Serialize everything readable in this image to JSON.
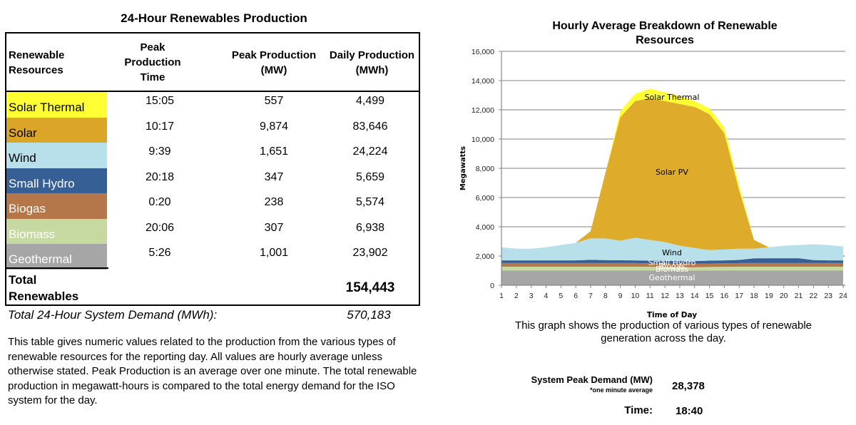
{
  "table": {
    "title": "24-Hour Renewables Production",
    "headers": [
      "Renewable Resources",
      "Peak Production Time",
      "Peak Production (MW)",
      "Daily Production (MWh)"
    ],
    "header_lines": {
      "h0": [
        "Renewable",
        "Resources"
      ],
      "h1": [
        "Peak",
        "Production",
        "Time"
      ],
      "h2": [
        "Peak Production",
        "(MW)"
      ],
      "h3": [
        "Daily Production",
        "(MWh)"
      ]
    },
    "rows": [
      {
        "resource": "Solar Thermal",
        "peak_time": "15:05",
        "peak_mw": "557",
        "daily_mwh": "4,499",
        "color": "#ffff33",
        "text_color": "#000000"
      },
      {
        "resource": "Solar",
        "peak_time": "10:17",
        "peak_mw": "9,874",
        "daily_mwh": "83,646",
        "color": "#dba628",
        "text_color": "#000000"
      },
      {
        "resource": "Wind",
        "peak_time": "9:39",
        "peak_mw": "1,651",
        "daily_mwh": "24,224",
        "color": "#b7e0ea",
        "text_color": "#000000"
      },
      {
        "resource": "Small Hydro",
        "peak_time": "20:18",
        "peak_mw": "347",
        "daily_mwh": "5,659",
        "color": "#355f95",
        "text_color": "#ffffff"
      },
      {
        "resource": "Biogas",
        "peak_time": "0:20",
        "peak_mw": "238",
        "daily_mwh": "5,574",
        "color": "#b5764a",
        "text_color": "#ffffff"
      },
      {
        "resource": "Biomass",
        "peak_time": "20:06",
        "peak_mw": "307",
        "daily_mwh": "6,938",
        "color": "#c6d9a0",
        "text_color": "#ffffff"
      },
      {
        "resource": "Geothermal",
        "peak_time": "5:26",
        "peak_mw": "1,001",
        "daily_mwh": "23,902",
        "color": "#a6a6a6",
        "text_color": "#ffffff"
      }
    ],
    "total_label_lines": [
      "Total",
      "Renewables"
    ],
    "total_value": "154,443",
    "demand_label": "Total 24-Hour System Demand (MWh):",
    "demand_value": "570,183",
    "description": "This table gives numeric values related to the production from the various types of renewable resources for the reporting day. All values are hourly average unless otherwise stated. Peak Production is an average over one minute. The total renewable production in megawatt-hours is compared to the total energy demand for the ISO system for the day."
  },
  "chart_data": {
    "type": "area",
    "stacked": true,
    "title": "Hourly Average Breakdown of Renewable Resources",
    "title_lines": [
      "Hourly Average Breakdown of Renewable",
      "Resources"
    ],
    "xlabel": "Time of Day",
    "ylabel": "Megawatts",
    "x": [
      1,
      2,
      3,
      4,
      5,
      6,
      7,
      8,
      9,
      10,
      11,
      12,
      13,
      14,
      15,
      16,
      17,
      18,
      19,
      20,
      21,
      22,
      23,
      24
    ],
    "ylim": [
      0,
      16000
    ],
    "yticks": [
      0,
      2000,
      4000,
      6000,
      8000,
      10000,
      12000,
      14000,
      16000
    ],
    "ytick_labels": [
      "0",
      "2,000",
      "4,000",
      "6,000",
      "8,000",
      "10,000",
      "12,000",
      "14,000",
      "16,000"
    ],
    "grid": true,
    "legend": "none (inline labels)",
    "series": [
      {
        "name": "Geothermal",
        "color": "#a6a6a6",
        "label_color": "#ffffff",
        "values": [
          1000,
          1000,
          1000,
          1000,
          1000,
          1000,
          1000,
          1000,
          1000,
          1000,
          1000,
          1000,
          1000,
          1000,
          1000,
          1000,
          1000,
          1000,
          1000,
          1000,
          1000,
          1000,
          1000,
          1000
        ]
      },
      {
        "name": "Biomass",
        "color": "#c6d9a0",
        "label_color": "#ffffff",
        "values": [
          270,
          270,
          270,
          270,
          270,
          270,
          270,
          270,
          270,
          270,
          260,
          250,
          240,
          230,
          250,
          260,
          270,
          270,
          270,
          270,
          270,
          270,
          270,
          270
        ]
      },
      {
        "name": "Biogas",
        "color": "#b5764a",
        "label_color": "#ffffff",
        "values": [
          250,
          250,
          250,
          250,
          250,
          250,
          250,
          250,
          250,
          250,
          240,
          240,
          240,
          240,
          240,
          240,
          250,
          250,
          250,
          250,
          250,
          250,
          250,
          250
        ]
      },
      {
        "name": "Small Hydro",
        "color": "#355f95",
        "label_color": "#ffffff",
        "values": [
          180,
          180,
          180,
          180,
          180,
          180,
          220,
          200,
          190,
          180,
          180,
          180,
          180,
          180,
          190,
          200,
          210,
          320,
          330,
          330,
          330,
          200,
          180,
          180
        ]
      },
      {
        "name": "Wind",
        "color": "#b7e0ea",
        "label_color": "#000000",
        "values": [
          900,
          800,
          800,
          900,
          1050,
          1200,
          1460,
          1480,
          1340,
          1550,
          1420,
          1280,
          1040,
          900,
          720,
          750,
          770,
          660,
          750,
          850,
          900,
          1080,
          1050,
          950
        ]
      },
      {
        "name": "Solar PV",
        "color": "#dfab2a",
        "label_color": "#000000",
        "values": [
          0,
          0,
          0,
          0,
          0,
          0,
          500,
          4500,
          8450,
          9350,
          9700,
          9650,
          9700,
          9650,
          9300,
          7950,
          4000,
          600,
          0,
          0,
          0,
          0,
          0,
          0
        ]
      },
      {
        "name": "Solar Thermal",
        "color": "#ffff33",
        "label_color": "#000000",
        "values": [
          0,
          0,
          0,
          0,
          0,
          0,
          0,
          0,
          400,
          500,
          650,
          600,
          550,
          400,
          400,
          400,
          300,
          0,
          0,
          0,
          0,
          0,
          0,
          0
        ]
      }
    ]
  },
  "chart_caption": "This graph shows the production of various types of renewable generation across the day.",
  "peak": {
    "label": "System Peak Demand (MW)",
    "note": "*one minute average",
    "value": "28,378",
    "time_label": "Time:",
    "time_value": "18:40"
  }
}
